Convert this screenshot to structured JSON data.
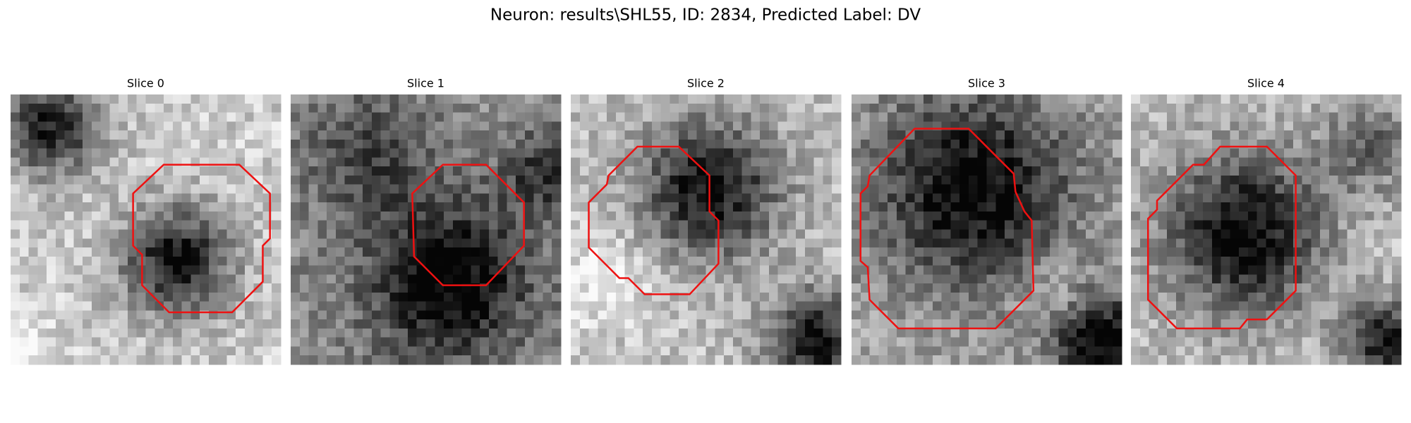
{
  "figure": {
    "title": "Neuron: results\\SHL55, ID: 2834, Predicted Label: DV",
    "panels": [
      {
        "title": "Slice 0"
      },
      {
        "title": "Slice 1"
      },
      {
        "title": "Slice 2"
      },
      {
        "title": "Slice 3"
      },
      {
        "title": "Slice 4"
      }
    ]
  }
}
